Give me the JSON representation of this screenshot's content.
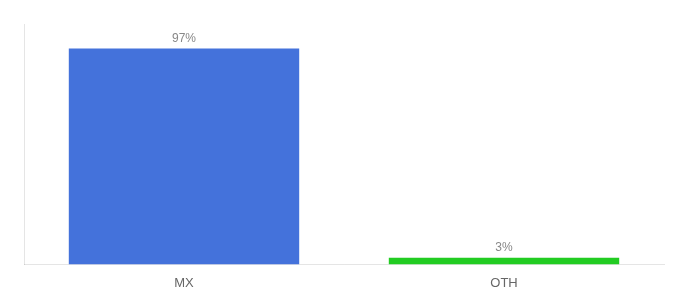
{
  "chart_data": {
    "type": "bar",
    "categories": [
      "MX",
      "OTH"
    ],
    "values": [
      97,
      3
    ],
    "value_labels": [
      "97%",
      "3%"
    ],
    "colors": [
      "#4472db",
      "#22cc22"
    ],
    "ylim": [
      0,
      108
    ],
    "grid": false,
    "data_labels": true,
    "tick_labels": "x"
  }
}
